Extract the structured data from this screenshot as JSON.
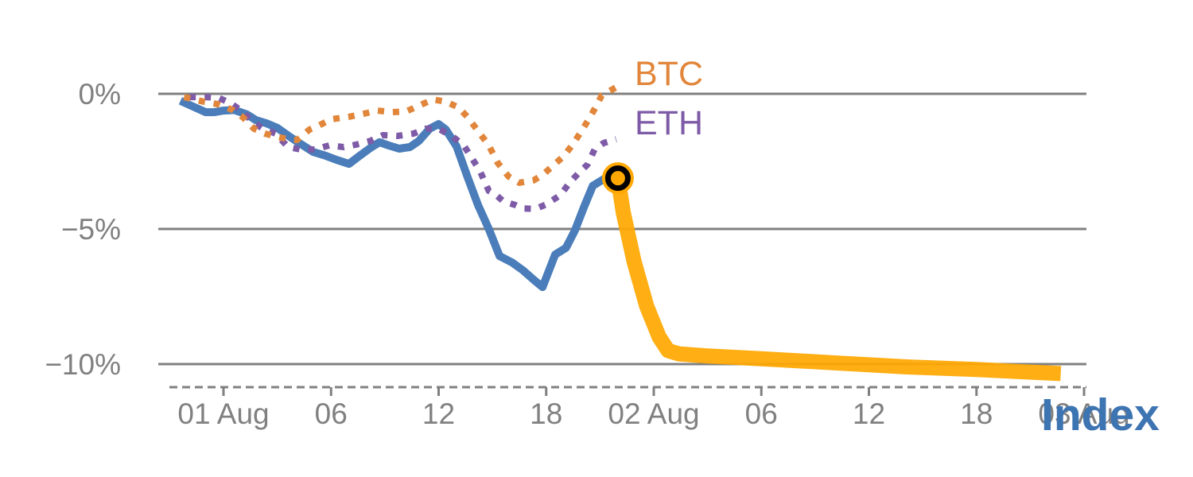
{
  "chart_data": {
    "type": "line",
    "title": "",
    "xlabel": "Index",
    "ylabel": "",
    "x_unit": "hours since 01 Aug 00:00",
    "xlim": [
      -3.6,
      48.1
    ],
    "ylim": [
      -10.9,
      0.5
    ],
    "grid": "horizontal-only",
    "legend_position": "inline-end-of-lines",
    "colors": {
      "btc": "#e1863a",
      "eth": "#7e5ba7",
      "index": "#4a7db9",
      "index_highlight": "#ffa802",
      "axis_gray": "#808080",
      "axis_title_blue": "#3d74b2",
      "marker_ring": "#000000"
    },
    "x_ticks": [
      {
        "x": 0,
        "label": "01 Aug"
      },
      {
        "x": 6,
        "label": "06"
      },
      {
        "x": 12,
        "label": "12"
      },
      {
        "x": 18,
        "label": "18"
      },
      {
        "x": 24,
        "label": "02 Aug"
      },
      {
        "x": 30,
        "label": "06"
      },
      {
        "x": 36,
        "label": "12"
      },
      {
        "x": 42,
        "label": "18"
      },
      {
        "x": 48,
        "label": "03 Aug"
      }
    ],
    "y_ticks": [
      {
        "y": 0,
        "label": "0%"
      },
      {
        "y": -5,
        "label": "−5%"
      },
      {
        "y": -10,
        "label": "−10%"
      }
    ],
    "legend": [
      {
        "label": "BTC",
        "color": "#e1863a"
      },
      {
        "label": "ETH",
        "color": "#7e5ba7"
      }
    ],
    "series": [
      {
        "name": "Index",
        "color": "#4a7db9",
        "style": "solid",
        "width": 10,
        "points": [
          [
            -2.4,
            -0.26
          ],
          [
            -1.6,
            -0.5
          ],
          [
            -1.0,
            -0.68
          ],
          [
            -0.5,
            -0.68
          ],
          [
            0,
            -0.62
          ],
          [
            0.6,
            -0.6
          ],
          [
            1.3,
            -0.76
          ],
          [
            1.8,
            -0.97
          ],
          [
            2.4,
            -1.09
          ],
          [
            3.0,
            -1.26
          ],
          [
            3.7,
            -1.59
          ],
          [
            4.3,
            -1.85
          ],
          [
            5.0,
            -2.15
          ],
          [
            5.7,
            -2.29
          ],
          [
            6.3,
            -2.44
          ],
          [
            7.0,
            -2.59
          ],
          [
            7.6,
            -2.29
          ],
          [
            8.2,
            -2.0
          ],
          [
            8.7,
            -1.79
          ],
          [
            9.2,
            -1.91
          ],
          [
            9.8,
            -2.03
          ],
          [
            10.4,
            -1.97
          ],
          [
            10.9,
            -1.74
          ],
          [
            11.5,
            -1.29
          ],
          [
            12.0,
            -1.12
          ],
          [
            12.4,
            -1.32
          ],
          [
            13.0,
            -1.94
          ],
          [
            13.6,
            -3.06
          ],
          [
            14.2,
            -4.12
          ],
          [
            14.8,
            -5.0
          ],
          [
            15.4,
            -6.0
          ],
          [
            16.1,
            -6.24
          ],
          [
            16.7,
            -6.53
          ],
          [
            17.3,
            -6.88
          ],
          [
            17.8,
            -7.15
          ],
          [
            18.5,
            -5.95
          ],
          [
            19.1,
            -5.7
          ],
          [
            19.6,
            -5.06
          ],
          [
            20.1,
            -4.2
          ],
          [
            20.6,
            -3.4
          ],
          [
            21.3,
            -3.12
          ],
          [
            22.0,
            -3.12
          ]
        ]
      },
      {
        "name": "ETH",
        "color": "#7e5ba7",
        "style": "dotted",
        "width": 8,
        "points": [
          [
            -1.9,
            -0.12
          ],
          [
            -1.05,
            -0.12
          ],
          [
            -0.26,
            -0.15
          ],
          [
            0.4,
            -0.35
          ],
          [
            1.05,
            -0.65
          ],
          [
            1.6,
            -1.03
          ],
          [
            2.2,
            -1.29
          ],
          [
            2.9,
            -1.47
          ],
          [
            3.6,
            -1.97
          ],
          [
            4.3,
            -2.06
          ],
          [
            5.1,
            -2.06
          ],
          [
            5.9,
            -1.91
          ],
          [
            6.7,
            -1.97
          ],
          [
            7.4,
            -1.88
          ],
          [
            8.2,
            -1.74
          ],
          [
            8.9,
            -1.53
          ],
          [
            9.7,
            -1.56
          ],
          [
            10.6,
            -1.47
          ],
          [
            11.3,
            -1.29
          ],
          [
            12.0,
            -1.29
          ],
          [
            12.8,
            -1.59
          ],
          [
            13.4,
            -1.91
          ],
          [
            13.8,
            -2.32
          ],
          [
            14.3,
            -2.85
          ],
          [
            14.8,
            -3.59
          ],
          [
            15.2,
            -3.74
          ],
          [
            15.6,
            -3.97
          ],
          [
            16.3,
            -4.12
          ],
          [
            16.7,
            -4.24
          ],
          [
            17.4,
            -4.26
          ],
          [
            18.0,
            -4.09
          ],
          [
            18.8,
            -3.74
          ],
          [
            19.3,
            -3.29
          ],
          [
            19.8,
            -2.94
          ],
          [
            20.3,
            -2.62
          ],
          [
            20.7,
            -2.06
          ],
          [
            21.2,
            -1.82
          ],
          [
            21.9,
            -1.68
          ]
        ]
      },
      {
        "name": "BTC",
        "color": "#e1863a",
        "style": "dotted",
        "width": 8,
        "points": [
          [
            -2.2,
            -0.12
          ],
          [
            -1.1,
            -0.29
          ],
          [
            -0.35,
            -0.38
          ],
          [
            0.5,
            -0.59
          ],
          [
            1.1,
            -0.88
          ],
          [
            1.7,
            -1.29
          ],
          [
            2.3,
            -1.47
          ],
          [
            3.0,
            -1.59
          ],
          [
            3.6,
            -1.68
          ],
          [
            4.1,
            -1.71
          ],
          [
            4.8,
            -1.32
          ],
          [
            5.3,
            -1.18
          ],
          [
            6.0,
            -0.94
          ],
          [
            7.0,
            -0.85
          ],
          [
            7.8,
            -0.74
          ],
          [
            8.6,
            -0.62
          ],
          [
            9.4,
            -0.68
          ],
          [
            10.2,
            -0.65
          ],
          [
            11.0,
            -0.41
          ],
          [
            11.7,
            -0.21
          ],
          [
            12.4,
            -0.29
          ],
          [
            13.1,
            -0.5
          ],
          [
            13.6,
            -0.85
          ],
          [
            14.2,
            -1.38
          ],
          [
            14.8,
            -1.91
          ],
          [
            15.3,
            -2.56
          ],
          [
            15.9,
            -3.06
          ],
          [
            16.5,
            -3.29
          ],
          [
            17.3,
            -3.2
          ],
          [
            17.8,
            -3.0
          ],
          [
            18.4,
            -2.65
          ],
          [
            19.0,
            -2.29
          ],
          [
            19.5,
            -1.85
          ],
          [
            20.0,
            -1.35
          ],
          [
            20.4,
            -0.91
          ],
          [
            20.8,
            -0.44
          ],
          [
            21.1,
            -0.06
          ],
          [
            21.9,
            0.24
          ]
        ]
      },
      {
        "name": "Index-highlight",
        "color": "#ffa802",
        "style": "solid",
        "width": 19,
        "points": [
          [
            22.0,
            -3.12
          ],
          [
            22.3,
            -4.4
          ],
          [
            22.9,
            -6.2
          ],
          [
            23.6,
            -7.85
          ],
          [
            24.3,
            -9.0
          ],
          [
            24.8,
            -9.5
          ],
          [
            25.4,
            -9.62
          ],
          [
            27.0,
            -9.7
          ],
          [
            30.0,
            -9.8
          ],
          [
            34.0,
            -9.95
          ],
          [
            38.0,
            -10.1
          ],
          [
            42.0,
            -10.2
          ],
          [
            46.7,
            -10.35
          ]
        ]
      }
    ],
    "highlight_marker": {
      "x": 22.0,
      "y": -3.12,
      "fill": "#ffa802",
      "ring_color": "#000000"
    }
  }
}
